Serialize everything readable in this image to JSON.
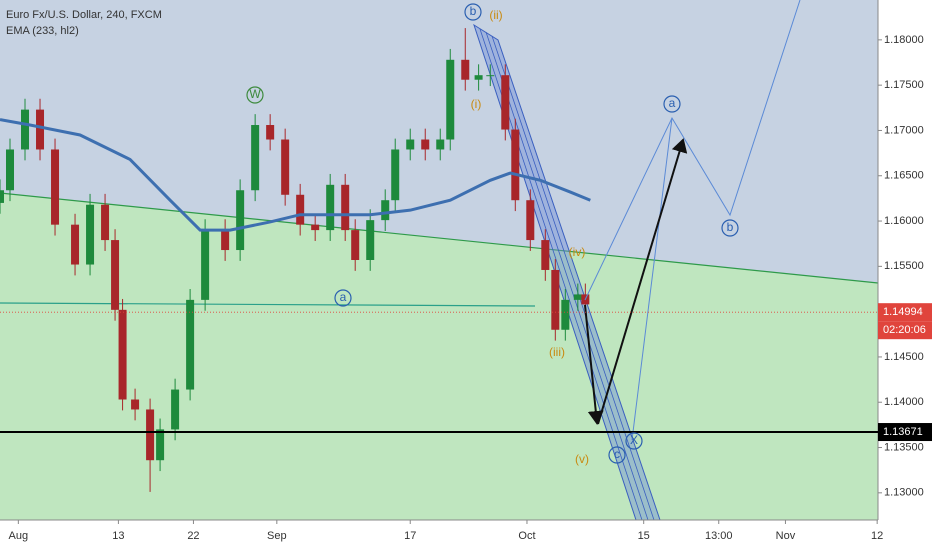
{
  "chart_data": {
    "type": "candlestick",
    "title": "Euro Fx/U.S. Dollar, 240, FXCM",
    "xlim": [
      -2.2,
      103.1
    ],
    "ylim": [
      1.127,
      1.1844
    ],
    "xticks": [
      {
        "value": 0,
        "label": "Aug"
      },
      {
        "value": 12,
        "label": "13"
      },
      {
        "value": 21,
        "label": "22"
      },
      {
        "value": 31,
        "label": "Sep"
      },
      {
        "value": 47,
        "label": "17"
      },
      {
        "value": 61,
        "label": "Oct"
      },
      {
        "value": 75,
        "label": "15"
      },
      {
        "value": 84,
        "label": "13:00"
      },
      {
        "value": 92,
        "label": "Nov"
      },
      {
        "value": 103,
        "label": "12"
      }
    ],
    "yticks": [
      {
        "value": 1.13,
        "label": "1.13000"
      },
      {
        "value": 1.135,
        "label": "1.13500"
      },
      {
        "value": 1.14,
        "label": "1.14000"
      },
      {
        "value": 1.145,
        "label": "1.14500"
      },
      {
        "value": 1.15,
        "label": "1.15000"
      },
      {
        "value": 1.155,
        "label": "1.15500"
      },
      {
        "value": 1.16,
        "label": "1.16000"
      },
      {
        "value": 1.165,
        "label": "1.16500"
      },
      {
        "value": 1.17,
        "label": "1.17000"
      },
      {
        "value": 1.175,
        "label": "1.17500"
      },
      {
        "value": 1.18,
        "label": "1.18000"
      }
    ],
    "up_color": "#1e8a3c",
    "down_color": "#a8262a",
    "candles": {
      "x": [
        -2.2,
        -1.0,
        0.8,
        2.6,
        4.4,
        6.8,
        8.6,
        10.4,
        11.6,
        12.5,
        14.0,
        15.8,
        17.0,
        18.8,
        20.6,
        22.4,
        24.8,
        26.6,
        28.4,
        30.2,
        32.0,
        33.8,
        35.6,
        37.4,
        39.2,
        40.4,
        42.2,
        44.0,
        45.2,
        47.0,
        48.8,
        50.6,
        51.8,
        53.6,
        55.2,
        56.6,
        58.4,
        59.6,
        61.4,
        63.2,
        64.4,
        65.6,
        67.1,
        68.0
      ],
      "open": [
        1.162,
        1.1634,
        1.1679,
        1.1723,
        1.1679,
        1.1596,
        1.1552,
        1.1618,
        1.1579,
        1.1502,
        1.1403,
        1.1392,
        1.1336,
        1.137,
        1.1414,
        1.1513,
        1.159,
        1.1568,
        1.1634,
        1.1706,
        1.169,
        1.1629,
        1.1596,
        1.159,
        1.164,
        1.159,
        1.1557,
        1.1601,
        1.1623,
        1.1679,
        1.169,
        1.1679,
        1.169,
        1.1778,
        1.1756,
        1.1761,
        1.1761,
        1.1701,
        1.1623,
        1.1579,
        1.1546,
        1.148,
        1.1513,
        1.1519
      ],
      "high": [
        1.1646,
        1.1691,
        1.1735,
        1.1735,
        1.1691,
        1.1608,
        1.163,
        1.163,
        1.1591,
        1.1514,
        1.1415,
        1.1404,
        1.1382,
        1.1426,
        1.1525,
        1.1602,
        1.1602,
        1.1646,
        1.1718,
        1.1718,
        1.1702,
        1.1641,
        1.1608,
        1.1652,
        1.1652,
        1.1602,
        1.1613,
        1.1635,
        1.1691,
        1.1702,
        1.1702,
        1.1702,
        1.179,
        1.1813,
        1.1773,
        1.1773,
        1.1773,
        1.1713,
        1.1635,
        1.1591,
        1.1558,
        1.1525,
        1.1531,
        1.1531
      ],
      "low": [
        1.1608,
        1.1622,
        1.1667,
        1.1667,
        1.1584,
        1.154,
        1.154,
        1.1567,
        1.149,
        1.1391,
        1.138,
        1.1301,
        1.1324,
        1.1358,
        1.1402,
        1.1501,
        1.1556,
        1.1556,
        1.1622,
        1.1678,
        1.1617,
        1.1584,
        1.1578,
        1.1578,
        1.1578,
        1.1545,
        1.1545,
        1.1589,
        1.1611,
        1.1667,
        1.1667,
        1.1667,
        1.1678,
        1.1744,
        1.1744,
        1.1749,
        1.1689,
        1.1611,
        1.1567,
        1.1534,
        1.1468,
        1.1468,
        1.1501,
        1.1496
      ],
      "close": [
        1.1634,
        1.1679,
        1.1723,
        1.1679,
        1.1596,
        1.1552,
        1.1618,
        1.1579,
        1.1502,
        1.1403,
        1.1392,
        1.1336,
        1.137,
        1.1414,
        1.1513,
        1.159,
        1.1568,
        1.1634,
        1.1706,
        1.169,
        1.1629,
        1.1596,
        1.159,
        1.164,
        1.159,
        1.1557,
        1.1601,
        1.1623,
        1.1679,
        1.169,
        1.1679,
        1.169,
        1.1778,
        1.1756,
        1.1761,
        1.1761,
        1.1701,
        1.1623,
        1.1579,
        1.1546,
        1.148,
        1.1513,
        1.1519,
        1.1508
      ]
    },
    "series": [
      {
        "name": "EMA (233, hl2)",
        "color": "#3d6fb0",
        "x": [
          -2.2,
          1.4,
          7.4,
          13.4,
          18.2,
          21.8,
          25.4,
          30.2,
          33.8,
          37.4,
          42.2,
          47.0,
          51.8,
          56.6,
          59.0,
          62.6,
          66.2,
          68.6
        ],
        "values": [
          1.1712,
          1.1706,
          1.1695,
          1.1668,
          1.1623,
          1.159,
          1.159,
          1.1599,
          1.1607,
          1.1607,
          1.1607,
          1.1612,
          1.1623,
          1.1645,
          1.1653,
          1.1645,
          1.1632,
          1.1623
        ]
      }
    ],
    "levels": [
      {
        "value": 1.14994,
        "color": "#e0443c"
      },
      {
        "value": 1.13671,
        "color": "#000000"
      }
    ],
    "countdown": "02:20:06",
    "annotations": [
      "b",
      "(ii)",
      "W",
      "(i)",
      "a",
      "(iv)",
      "(iii)",
      "(v)",
      "c",
      "X",
      "a",
      "b"
    ]
  }
}
